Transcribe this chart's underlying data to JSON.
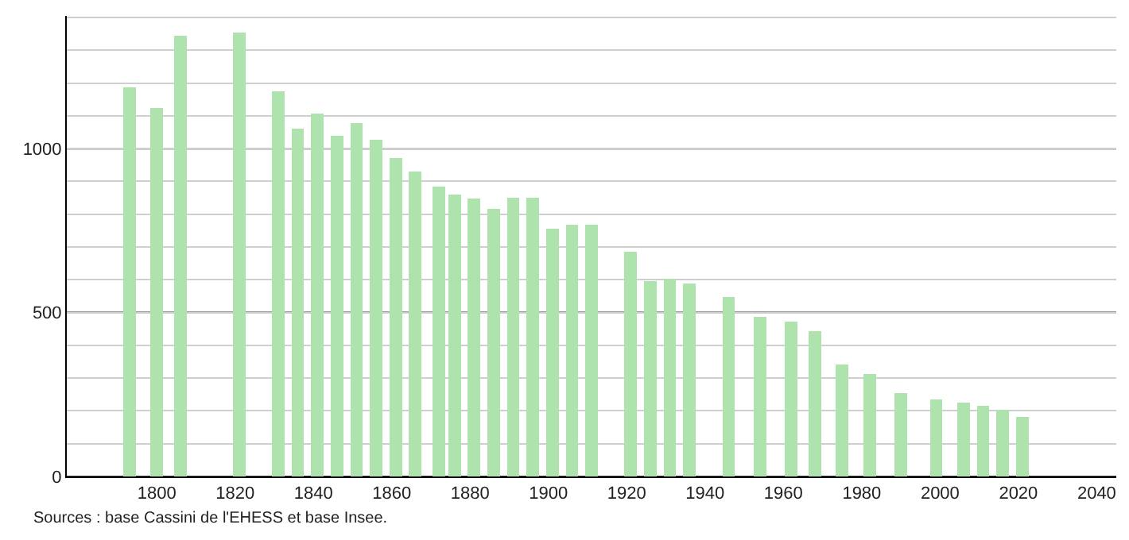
{
  "chart_data": {
    "type": "bar",
    "color": "#aee3ae",
    "x": [
      1793,
      1800,
      1806,
      1821,
      1831,
      1836,
      1841,
      1846,
      1851,
      1856,
      1861,
      1866,
      1872,
      1876,
      1881,
      1886,
      1891,
      1896,
      1901,
      1906,
      1911,
      1921,
      1926,
      1931,
      1936,
      1946,
      1954,
      1962,
      1968,
      1975,
      1982,
      1990,
      1999,
      2006,
      2011,
      2016,
      2021
    ],
    "values": [
      1186,
      1123,
      1344,
      1353,
      1175,
      1060,
      1107,
      1039,
      1078,
      1028,
      971,
      931,
      884,
      860,
      849,
      816,
      850,
      850,
      755,
      768,
      768,
      686,
      597,
      602,
      589,
      548,
      487,
      473,
      444,
      342,
      313,
      255,
      236,
      226,
      216,
      203,
      182
    ],
    "xlim": [
      1777,
      2045
    ],
    "xticks": [
      1800,
      1820,
      1840,
      1860,
      1880,
      1900,
      1920,
      1940,
      1960,
      1980,
      2000,
      2020,
      2040
    ],
    "ylim": [
      0,
      1405
    ],
    "yticks": [
      0,
      {
        "value": 100,
        "label": null
      },
      {
        "value": 200,
        "label": null
      },
      {
        "value": 300,
        "label": null
      },
      {
        "value": 400,
        "label": null
      },
      500,
      {
        "value": 600,
        "label": null
      },
      {
        "value": 700,
        "label": null
      },
      {
        "value": 800,
        "label": null
      },
      {
        "value": 900,
        "label": null
      },
      1000,
      {
        "value": 1100,
        "label": null
      },
      {
        "value": 1200,
        "label": null
      },
      {
        "value": 1300,
        "label": null
      },
      {
        "value": 1400,
        "label": null
      }
    ],
    "grid": "y",
    "annotations": [
      "Sources : base Cassini de l'EHESS et base Insee."
    ]
  }
}
